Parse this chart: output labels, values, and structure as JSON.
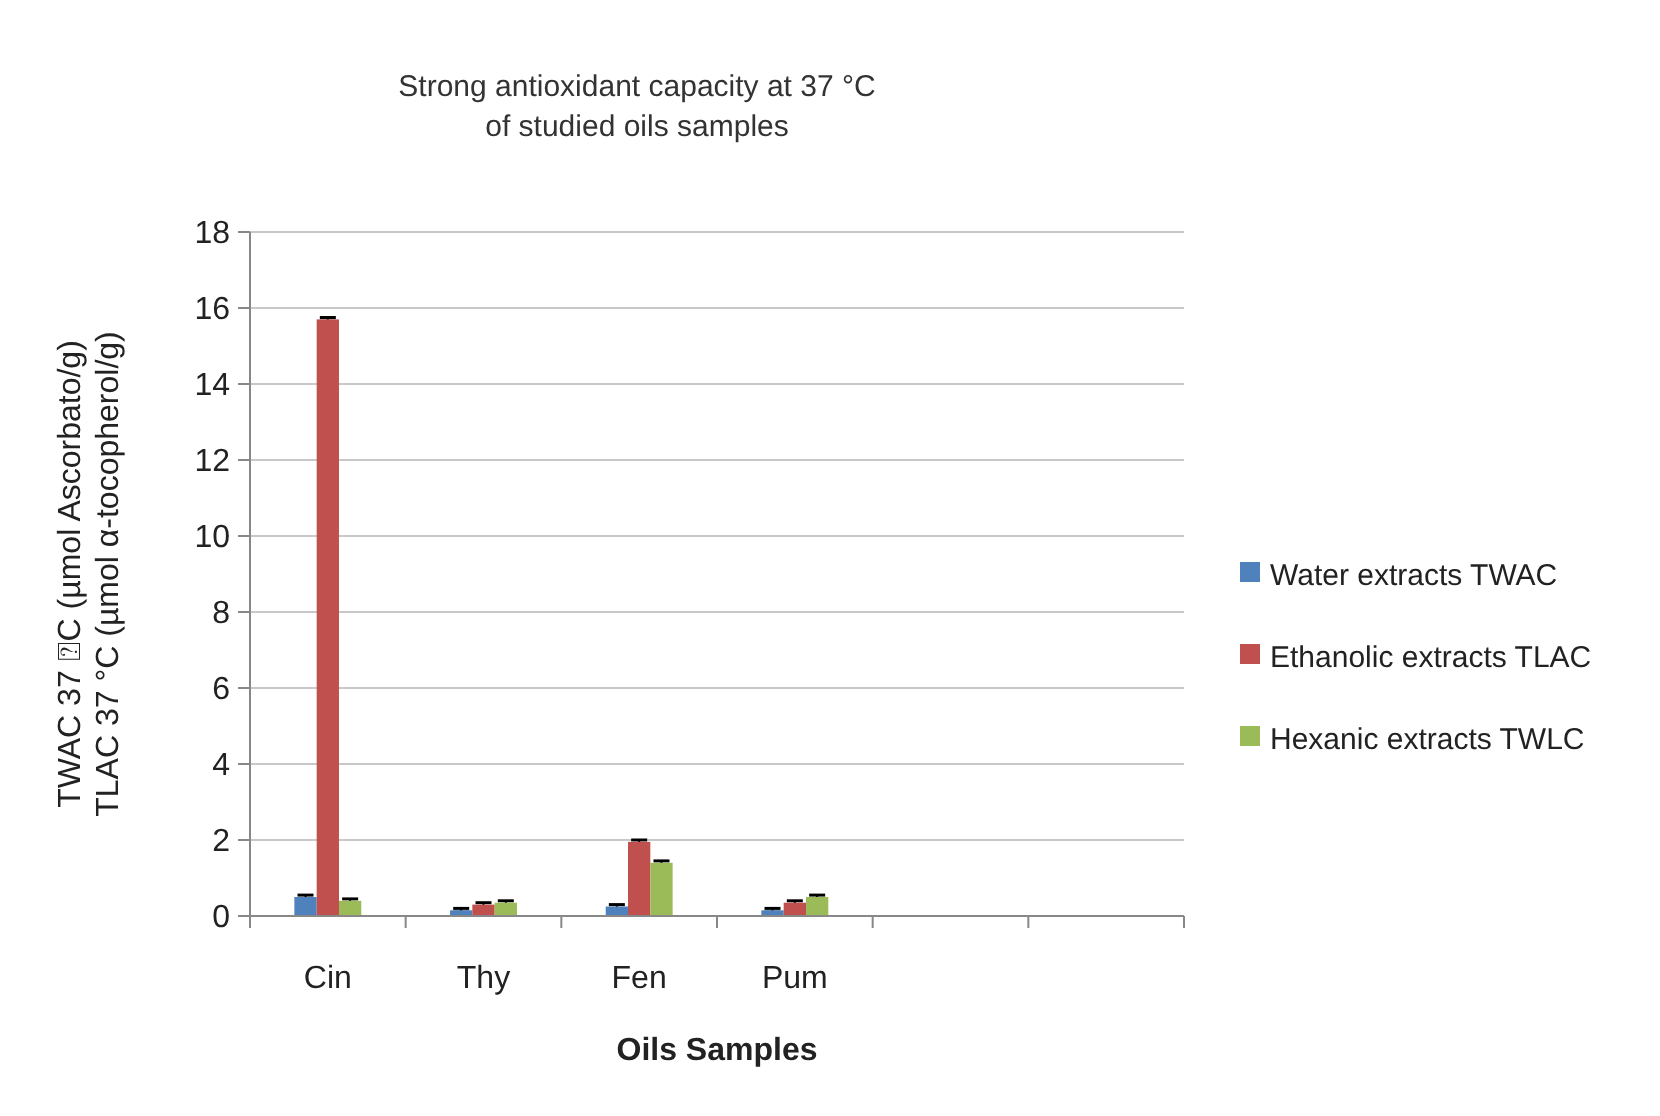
{
  "chart_data": {
    "type": "bar",
    "title": "Strong antioxidant capacity at 37 °C\nof studied oils samples",
    "xlabel": "Oils Samples",
    "ylabel": "TWAC 37 ⍰C (µmol Ascorbato/g)\nTLAC 37 °C (µmol α-tocopherol/g)",
    "categories": [
      "Cin",
      "Thy",
      "Fen",
      "Pum",
      null,
      null
    ],
    "series": [
      {
        "name": "Water extracts TWAC",
        "color": "#4f81bd",
        "values": [
          0.5,
          0.15,
          0.25,
          0.15,
          null,
          null
        ],
        "errors": [
          0.05,
          0.05,
          0.05,
          0.05,
          null,
          null
        ]
      },
      {
        "name": "Ethanolic extracts TLAC",
        "color": "#c0504d",
        "values": [
          15.7,
          0.3,
          1.95,
          0.35,
          null,
          null
        ],
        "errors": [
          0.05,
          0.05,
          0.05,
          0.05,
          null,
          null
        ]
      },
      {
        "name": "Hexanic extracts TWLC",
        "color": "#9bbb59",
        "values": [
          0.4,
          0.35,
          1.4,
          0.5,
          null,
          null
        ],
        "errors": [
          0.05,
          0.05,
          0.05,
          0.05,
          null,
          null
        ]
      }
    ],
    "ylim": [
      0,
      18
    ],
    "yticks": [
      0,
      2,
      4,
      6,
      8,
      10,
      12,
      14,
      16,
      18
    ],
    "grid": "y",
    "legend": "right"
  }
}
